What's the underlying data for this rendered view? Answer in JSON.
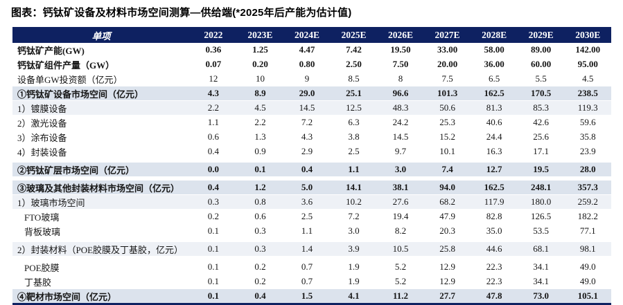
{
  "title": "图表：钙钛矿设备及材料市场空间测算—供给端(*2025年后产能为估计值)",
  "colors": {
    "header_bg": "#0e2161",
    "header_text": "#ffffff",
    "section_row_bg": "#dce3ed",
    "subheader_row_bg": "#eef1f6",
    "bottom_rule": "#0e2161",
    "body_text": "#161616"
  },
  "chart_data": {
    "type": "table",
    "title": "钙钛矿设备及材料市场空间测算—供给端",
    "note": "*2025年后产能为估计值",
    "columns": [
      "单项",
      "2022",
      "2023E",
      "2024E",
      "2025E",
      "2026E",
      "2027E",
      "2028E",
      "2029E",
      "2030E"
    ],
    "rows": [
      {
        "label": "钙钛矿产能(GW)",
        "style": "plain",
        "bold": true,
        "indent": false,
        "gap_before": false,
        "values": [
          "0.36",
          "1.25",
          "4.47",
          "7.42",
          "19.50",
          "33.00",
          "58.00",
          "89.00",
          "142.00"
        ]
      },
      {
        "label": "钙钛矿组件产量（GW）",
        "style": "plain",
        "bold": true,
        "indent": false,
        "gap_before": false,
        "values": [
          "0.07",
          "0.20",
          "0.80",
          "2.50",
          "7.50",
          "20.00",
          "36.00",
          "60.00",
          "95.00"
        ]
      },
      {
        "label": "设备单GW投资额（亿元）",
        "style": "plain",
        "bold": false,
        "indent": false,
        "gap_before": false,
        "values": [
          "12",
          "10",
          "9",
          "8.5",
          "8",
          "7.5",
          "6.5",
          "5.5",
          "4.5"
        ]
      },
      {
        "label": "①钙钛矿设备市场空间（亿元）",
        "style": "section",
        "bold": true,
        "indent": false,
        "gap_before": false,
        "values": [
          "4.3",
          "8.9",
          "29.0",
          "25.1",
          "96.6",
          "101.3",
          "162.5",
          "170.5",
          "238.5"
        ]
      },
      {
        "label": "1）镀膜设备",
        "style": "subhead",
        "bold": false,
        "indent": false,
        "gap_before": false,
        "values": [
          "2.2",
          "4.5",
          "14.5",
          "12.5",
          "48.3",
          "50.6",
          "81.3",
          "85.3",
          "119.3"
        ]
      },
      {
        "label": "2）激光设备",
        "style": "plain",
        "bold": false,
        "indent": false,
        "gap_before": false,
        "values": [
          "1.1",
          "2.2",
          "7.2",
          "6.3",
          "24.2",
          "25.3",
          "40.6",
          "42.6",
          "59.6"
        ]
      },
      {
        "label": "3）涂布设备",
        "style": "plain",
        "bold": false,
        "indent": false,
        "gap_before": false,
        "values": [
          "0.6",
          "1.3",
          "4.3",
          "3.8",
          "14.5",
          "15.2",
          "24.4",
          "25.6",
          "35.8"
        ]
      },
      {
        "label": "4）封装设备",
        "style": "plain",
        "bold": false,
        "indent": false,
        "gap_before": false,
        "values": [
          "0.4",
          "0.9",
          "2.9",
          "2.5",
          "9.7",
          "10.1",
          "16.3",
          "17.1",
          "23.9"
        ]
      },
      {
        "label": "②钙钛矿层市场空间（亿元）",
        "style": "section",
        "bold": true,
        "indent": false,
        "gap_before": true,
        "values": [
          "0.0",
          "0.1",
          "0.4",
          "1.1",
          "3.0",
          "7.4",
          "12.7",
          "19.5",
          "28.0"
        ]
      },
      {
        "label": "③玻璃及其他封装材料市场空间（亿元）",
        "style": "section",
        "bold": true,
        "indent": false,
        "gap_before": true,
        "values": [
          "0.4",
          "1.2",
          "5.0",
          "14.1",
          "38.1",
          "94.0",
          "162.5",
          "248.1",
          "357.3"
        ]
      },
      {
        "label": "1）玻璃市场空间",
        "style": "subhead",
        "bold": false,
        "indent": false,
        "gap_before": false,
        "values": [
          "0.3",
          "0.8",
          "3.6",
          "10.2",
          "27.6",
          "68.2",
          "117.9",
          "180.0",
          "259.2"
        ]
      },
      {
        "label": "FTO玻璃",
        "style": "plain",
        "bold": false,
        "indent": true,
        "gap_before": false,
        "values": [
          "0.2",
          "0.6",
          "2.5",
          "7.2",
          "19.4",
          "47.9",
          "82.8",
          "126.5",
          "182.2"
        ]
      },
      {
        "label": "背板玻璃",
        "style": "plain",
        "bold": false,
        "indent": true,
        "gap_before": false,
        "values": [
          "0.1",
          "0.3",
          "1.1",
          "3.0",
          "8.2",
          "20.3",
          "35.0",
          "53.5",
          "77.1"
        ]
      },
      {
        "label": "2）封装材料（POE胶膜及丁基胶，亿元）",
        "style": "subhead",
        "bold": false,
        "indent": false,
        "gap_before": true,
        "values": [
          "0.1",
          "0.3",
          "1.4",
          "3.9",
          "10.5",
          "25.8",
          "44.6",
          "68.1",
          "98.1"
        ]
      },
      {
        "label": "POE胶膜",
        "style": "plain",
        "bold": false,
        "indent": true,
        "gap_before": true,
        "values": [
          "0.1",
          "0.2",
          "0.7",
          "1.9",
          "5.2",
          "12.9",
          "22.3",
          "34.1",
          "49.0"
        ]
      },
      {
        "label": "丁基胶",
        "style": "plain",
        "bold": false,
        "indent": true,
        "gap_before": false,
        "values": [
          "0.1",
          "0.2",
          "0.7",
          "1.9",
          "5.2",
          "12.9",
          "22.3",
          "34.1",
          "49.0"
        ]
      },
      {
        "label": "④靶材市场空间（亿元）",
        "style": "section",
        "bold": true,
        "indent": false,
        "gap_before": false,
        "values": [
          "0.1",
          "0.4",
          "1.5",
          "4.1",
          "11.2",
          "27.7",
          "47.8",
          "73.0",
          "105.1"
        ]
      }
    ]
  }
}
